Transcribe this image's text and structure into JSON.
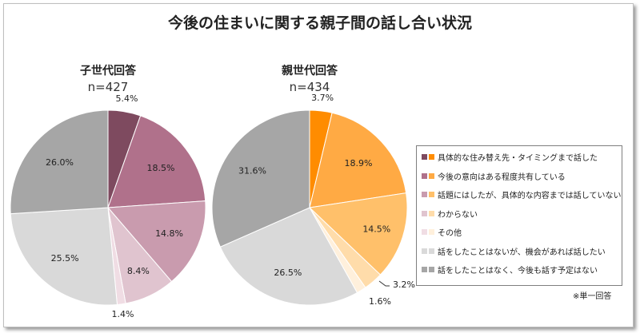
{
  "chart_data": [
    {
      "type": "pie",
      "title": "子世代回答",
      "n_label": "n=427",
      "values": [
        5.4,
        18.5,
        14.8,
        8.4,
        1.4,
        25.5,
        26.0
      ],
      "labels": [
        "5.4%",
        "18.5%",
        "14.8%",
        "8.4%",
        "1.4%",
        "25.5%",
        "26.0%"
      ],
      "colors": [
        "#7e4a5f",
        "#b0718b",
        "#c99bae",
        "#e0c4cf",
        "#f0dde4",
        "#d9d9d9",
        "#a6a6a6"
      ]
    },
    {
      "type": "pie",
      "title": "親世代回答",
      "n_label": "n=434",
      "values": [
        3.7,
        18.9,
        14.5,
        3.2,
        1.6,
        26.5,
        31.6
      ],
      "labels": [
        "3.7%",
        "18.9%",
        "14.5%",
        "3.2%",
        "1.6%",
        "26.5%",
        "31.6%"
      ],
      "colors": [
        "#ff8c00",
        "#ffaa44",
        "#ffc06a",
        "#ffdcaa",
        "#fff0dc",
        "#d9d9d9",
        "#a6a6a6"
      ]
    }
  ],
  "title": "今後の住まいに関する親子間の話し合い状況",
  "legend": [
    "具体的な住み替え先・タイミングまで話した",
    "今後の意向はある程度共有している",
    "話題にはしたが、具体的な内容までは話していない",
    "わからない",
    "その他",
    "話をしたことはないが、機会があれば話したい",
    "話をしたことはなく、今後も話す予定はない"
  ],
  "note": "※単一回答"
}
